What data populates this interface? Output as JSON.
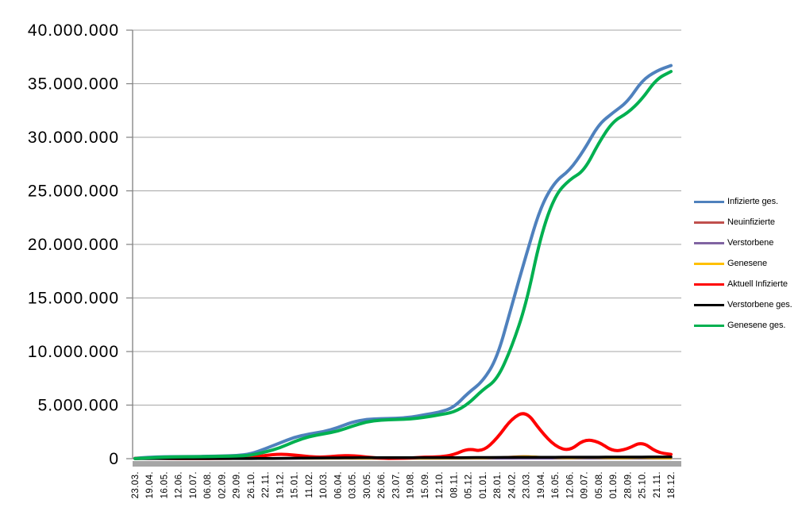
{
  "chart_data": {
    "type": "line",
    "title": "",
    "xlabel": "",
    "ylabel": "",
    "ylim": [
      0,
      40000000
    ],
    "grid": "horizontal-only",
    "legend_position": "right",
    "y_tick_labels": [
      "0",
      "5.000.000",
      "10.000.000",
      "15.000.000",
      "20.000.000",
      "25.000.000",
      "30.000.000",
      "35.000.000",
      "40.000.000"
    ],
    "x_tick_labels": [
      "23.03.",
      "19.04.",
      "16.05.",
      "12.06.",
      "10.07.",
      "06.08.",
      "02.09.",
      "29.09.",
      "26.10.",
      "22.11.",
      "19.12.",
      "15.01.",
      "11.02.",
      "10.03.",
      "06.04.",
      "03.05.",
      "30.05.",
      "26.06.",
      "23.07.",
      "19.08.",
      "15.09.",
      "12.10.",
      "08.11.",
      "05.12.",
      "01.01.",
      "28.01.",
      "24.02.",
      "23.03.",
      "19.04.",
      "16.05.",
      "12.06.",
      "09.07.",
      "05.08.",
      "01.09.",
      "28.09.",
      "25.10.",
      "21.11.",
      "18.12."
    ],
    "series": [
      {
        "name": "Infizierte ges.",
        "color": "#4F81BD",
        "values": [
          30000,
          140000,
          175000,
          190000,
          198000,
          212000,
          246000,
          290000,
          440000,
          930000,
          1470000,
          2000000,
          2300000,
          2510000,
          2890000,
          3420000,
          3680000,
          3730000,
          3760000,
          3850000,
          4100000,
          4330000,
          4770000,
          6150000,
          7190000,
          9400000,
          14250000,
          19000000,
          23500000,
          25900000,
          26900000,
          28800000,
          31200000,
          32300000,
          33300000,
          35300000,
          36200000,
          36700000
        ]
      },
      {
        "name": "Neuinfizierte",
        "color": "#C0504D",
        "values": [
          4000,
          2000,
          1000,
          300,
          400,
          1000,
          1500,
          2500,
          11000,
          18000,
          25000,
          15000,
          8000,
          9000,
          16000,
          12000,
          4000,
          1000,
          1500,
          8000,
          10000,
          8000,
          30000,
          55000,
          30000,
          110000,
          190000,
          250000,
          140000,
          60000,
          35000,
          100000,
          75000,
          30000,
          50000,
          90000,
          30000,
          25000
        ]
      },
      {
        "name": "Verstorbene",
        "color": "#8064A2",
        "values": [
          200,
          250,
          100,
          50,
          40,
          30,
          40,
          50,
          300,
          600,
          900,
          900,
          600,
          300,
          200,
          250,
          200,
          100,
          50,
          50,
          100,
          100,
          200,
          400,
          400,
          250,
          300,
          300,
          300,
          200,
          100,
          100,
          150,
          100,
          100,
          150,
          150,
          100
        ]
      },
      {
        "name": "Genesene",
        "color": "#FFC000",
        "values": [
          2000,
          3000,
          1200,
          500,
          400,
          1000,
          1200,
          1500,
          6000,
          15000,
          22000,
          18000,
          10000,
          8000,
          13000,
          14000,
          6000,
          2000,
          1200,
          5000,
          9000,
          8000,
          20000,
          45000,
          35000,
          90000,
          170000,
          240000,
          160000,
          70000,
          40000,
          90000,
          80000,
          35000,
          45000,
          85000,
          35000,
          25000
        ]
      },
      {
        "name": "Aktuell Infizierte",
        "color": "#FF0000",
        "values": [
          25000,
          60000,
          20000,
          10000,
          8000,
          10000,
          20000,
          35000,
          120000,
          300000,
          440000,
          350000,
          180000,
          130000,
          250000,
          300000,
          150000,
          30000,
          20000,
          60000,
          150000,
          150000,
          350000,
          950000,
          650000,
          1900000,
          3750000,
          4450000,
          2600000,
          1150000,
          700000,
          1800000,
          1600000,
          650000,
          900000,
          1600000,
          600000,
          400000
        ]
      },
      {
        "name": "Verstorbene ges.",
        "color": "#000000",
        "values": [
          200,
          4000,
          8000,
          8800,
          9100,
          9200,
          9300,
          9500,
          10000,
          14000,
          26000,
          45000,
          63000,
          72000,
          77000,
          83000,
          88000,
          90000,
          91000,
          92000,
          93000,
          94000,
          96000,
          103000,
          112000,
          117000,
          121000,
          126000,
          132000,
          137000,
          140000,
          142000,
          144000,
          147000,
          149000,
          151000,
          154000,
          158000
        ]
      },
      {
        "name": "Genesene ges.",
        "color": "#00B050",
        "values": [
          4800,
          76000,
          147000,
          171000,
          181000,
          193000,
          217000,
          245000,
          310000,
          616000,
          1004000,
          1605000,
          2057000,
          2308000,
          2563000,
          3037000,
          3442000,
          3610000,
          3649000,
          3698000,
          3857000,
          4086000,
          4324000,
          5097000,
          6428000,
          7383000,
          10379000,
          14424000,
          20768000,
          24613000,
          26060000,
          26858000,
          29456000,
          31503000,
          32251000,
          33549000,
          35446000,
          36142000
        ]
      }
    ]
  },
  "colors": {
    "background": "#FFFFFF",
    "gridline": "#A6A6A6",
    "axis_line": "#808080",
    "axis_band": "#A6A6A6",
    "text": "#000000"
  }
}
